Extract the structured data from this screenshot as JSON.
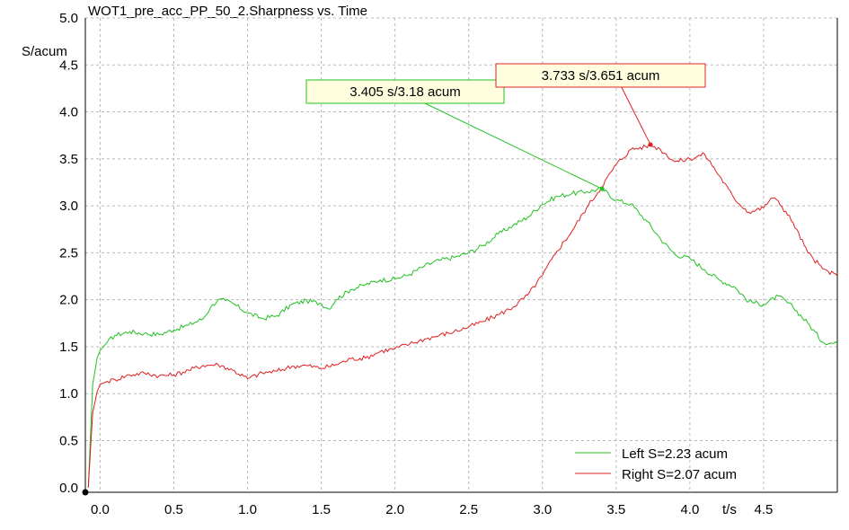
{
  "chart_data": {
    "type": "line",
    "title": "WOT1_pre_acc_PP_50_2.Sharpness vs. Time",
    "xlabel": "t/s",
    "ylabel": "S/acum",
    "xlim": [
      -0.1,
      5.0
    ],
    "ylim": [
      -0.05,
      5.0
    ],
    "x_ticks": [
      "0.0",
      "0.5",
      "1.0",
      "1.5",
      "2.0",
      "2.5",
      "3.0",
      "3.5",
      "4.0",
      "4.5"
    ],
    "y_ticks": [
      "0.0",
      "0.5",
      "1.0",
      "1.5",
      "2.0",
      "2.5",
      "3.0",
      "3.5",
      "4.0",
      "4.5",
      "5.0"
    ],
    "grid": true,
    "legend_position": "bottom-right",
    "series": [
      {
        "name": "Left S=2.23 acum",
        "color": "#22c022",
        "x": [
          -0.08,
          -0.05,
          -0.02,
          0.0,
          0.05,
          0.1,
          0.2,
          0.3,
          0.4,
          0.5,
          0.6,
          0.7,
          0.75,
          0.8,
          0.85,
          0.9,
          1.0,
          1.1,
          1.2,
          1.3,
          1.4,
          1.5,
          1.55,
          1.6,
          1.7,
          1.8,
          1.9,
          2.0,
          2.1,
          2.2,
          2.3,
          2.4,
          2.5,
          2.6,
          2.7,
          2.8,
          2.9,
          3.0,
          3.1,
          3.2,
          3.3,
          3.405,
          3.5,
          3.6,
          3.7,
          3.8,
          3.9,
          4.0,
          4.1,
          4.2,
          4.3,
          4.4,
          4.5,
          4.6,
          4.7,
          4.8,
          4.9,
          5.0
        ],
        "y": [
          0.0,
          1.1,
          1.38,
          1.46,
          1.55,
          1.62,
          1.66,
          1.64,
          1.63,
          1.68,
          1.73,
          1.8,
          1.92,
          2.0,
          1.99,
          1.96,
          1.86,
          1.8,
          1.83,
          1.95,
          1.99,
          1.96,
          1.9,
          2.0,
          2.11,
          2.16,
          2.21,
          2.22,
          2.27,
          2.36,
          2.42,
          2.45,
          2.5,
          2.58,
          2.7,
          2.79,
          2.88,
          3.02,
          3.1,
          3.13,
          3.15,
          3.18,
          3.06,
          3.02,
          2.85,
          2.65,
          2.48,
          2.44,
          2.32,
          2.21,
          2.14,
          1.98,
          1.95,
          2.04,
          1.92,
          1.75,
          1.55,
          1.53
        ]
      },
      {
        "name": "Right S=2.07 acum",
        "color": "#e02020",
        "x": [
          -0.08,
          -0.05,
          -0.02,
          0.0,
          0.05,
          0.1,
          0.2,
          0.3,
          0.4,
          0.5,
          0.6,
          0.7,
          0.8,
          0.9,
          1.0,
          1.1,
          1.2,
          1.3,
          1.4,
          1.5,
          1.6,
          1.7,
          1.8,
          1.9,
          2.0,
          2.1,
          2.2,
          2.3,
          2.4,
          2.5,
          2.6,
          2.7,
          2.8,
          2.9,
          3.0,
          3.1,
          3.2,
          3.3,
          3.4,
          3.5,
          3.6,
          3.7,
          3.733,
          3.8,
          3.9,
          4.0,
          4.1,
          4.2,
          4.3,
          4.4,
          4.5,
          4.55,
          4.6,
          4.7,
          4.8,
          4.9,
          5.0
        ],
        "y": [
          0.0,
          0.8,
          1.02,
          1.1,
          1.13,
          1.15,
          1.2,
          1.22,
          1.19,
          1.2,
          1.25,
          1.3,
          1.31,
          1.25,
          1.16,
          1.22,
          1.24,
          1.29,
          1.3,
          1.27,
          1.31,
          1.37,
          1.38,
          1.45,
          1.48,
          1.53,
          1.58,
          1.62,
          1.66,
          1.71,
          1.77,
          1.84,
          1.92,
          2.05,
          2.26,
          2.52,
          2.73,
          2.98,
          3.2,
          3.44,
          3.6,
          3.63,
          3.651,
          3.6,
          3.47,
          3.5,
          3.55,
          3.32,
          3.08,
          2.93,
          2.98,
          3.08,
          3.05,
          2.82,
          2.5,
          2.33,
          2.25
        ]
      }
    ],
    "cursors": [
      {
        "label": "3.405 s/3.18 acum",
        "x": 3.405,
        "y": 3.18,
        "color": "#22c022",
        "fill": "#ffffe0"
      },
      {
        "label": "3.733 s/3.651 acum",
        "x": 3.733,
        "y": 3.651,
        "color": "#e02020",
        "fill": "#ffffe0"
      }
    ]
  }
}
